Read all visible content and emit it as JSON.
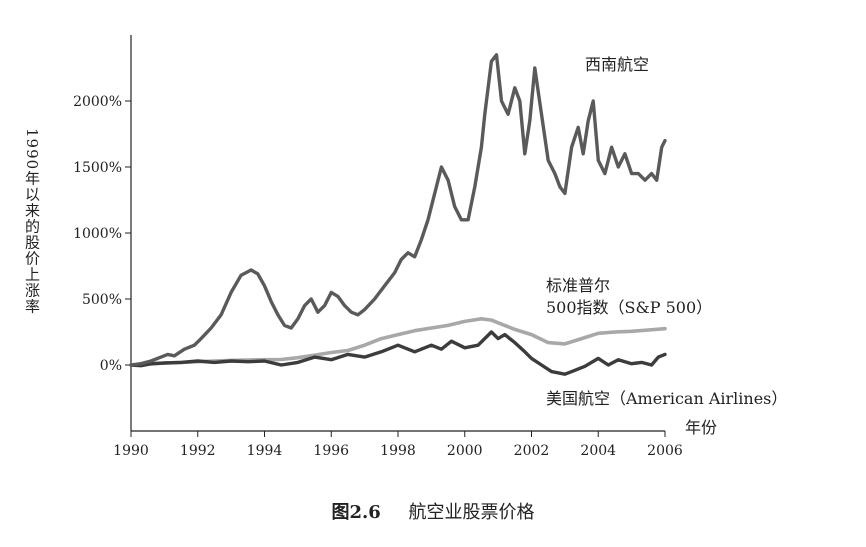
{
  "chart_data": {
    "type": "line",
    "title": "航空业股票价格",
    "figure_label": "图2.6",
    "xlabel": "年份",
    "ylabel": "1990年以来的股价上涨率",
    "xlim": [
      1990,
      2006
    ],
    "ylim": [
      -500,
      2500
    ],
    "x_ticks": [
      "1990",
      "1992",
      "1994",
      "1996",
      "1998",
      "2000",
      "2002",
      "2004",
      "2006"
    ],
    "y_ticks": [
      {
        "value": 0,
        "label": "0%"
      },
      {
        "value": 500,
        "label": "500%"
      },
      {
        "value": 1000,
        "label": "1000%"
      },
      {
        "value": 1500,
        "label": "1500%"
      },
      {
        "value": 2000,
        "label": "2000%"
      }
    ],
    "grid": false,
    "series": [
      {
        "name": "西南航空",
        "label_lines": [
          "西南航空"
        ],
        "color": "#5a5a5a",
        "x": [
          1990,
          1990.3,
          1990.6,
          1990.9,
          1991.1,
          1991.3,
          1991.6,
          1991.9,
          1992.1,
          1992.4,
          1992.7,
          1993.0,
          1993.3,
          1993.6,
          1993.8,
          1994.0,
          1994.2,
          1994.4,
          1994.6,
          1994.8,
          1995.0,
          1995.2,
          1995.4,
          1995.6,
          1995.8,
          1996.0,
          1996.2,
          1996.4,
          1996.6,
          1996.8,
          1997.0,
          1997.3,
          1997.6,
          1997.9,
          1998.1,
          1998.3,
          1998.5,
          1998.7,
          1998.9,
          1999.1,
          1999.3,
          1999.5,
          1999.7,
          1999.9,
          2000.1,
          2000.3,
          2000.5,
          2000.6,
          2000.8,
          2000.95,
          2001.1,
          2001.3,
          2001.5,
          2001.65,
          2001.8,
          2001.95,
          2002.1,
          2002.3,
          2002.5,
          2002.7,
          2002.85,
          2003.0,
          2003.2,
          2003.4,
          2003.55,
          2003.7,
          2003.85,
          2004.0,
          2004.2,
          2004.4,
          2004.6,
          2004.8,
          2005.0,
          2005.2,
          2005.4,
          2005.6,
          2005.75,
          2005.9,
          2006.0
        ],
        "values": [
          0,
          10,
          30,
          60,
          80,
          70,
          120,
          150,
          200,
          280,
          380,
          550,
          680,
          720,
          690,
          600,
          480,
          380,
          300,
          280,
          350,
          450,
          500,
          400,
          450,
          550,
          520,
          450,
          400,
          380,
          420,
          500,
          600,
          700,
          800,
          850,
          820,
          950,
          1100,
          1300,
          1500,
          1400,
          1200,
          1100,
          1100,
          1350,
          1650,
          1900,
          2300,
          2350,
          2000,
          1900,
          2100,
          2000,
          1600,
          1850,
          2250,
          1900,
          1550,
          1450,
          1350,
          1300,
          1650,
          1800,
          1600,
          1850,
          2000,
          1550,
          1450,
          1650,
          1500,
          1600,
          1450,
          1450,
          1400,
          1450,
          1400,
          1650,
          1700
        ]
      },
      {
        "name": "标准普尔500指数（S&P 500）",
        "label_lines": [
          "标准普尔",
          "500指数（S&P 500）"
        ],
        "color": "#a8a8a8",
        "x": [
          1990,
          1990.5,
          1991,
          1991.5,
          1992,
          1992.5,
          1993,
          1993.5,
          1994,
          1994.5,
          1995,
          1995.5,
          1996,
          1996.5,
          1997,
          1997.5,
          1998,
          1998.5,
          1999,
          1999.5,
          2000,
          2000.5,
          2000.8,
          2001,
          2001.5,
          2002,
          2002.5,
          2003,
          2003.5,
          2004,
          2004.5,
          2005,
          2005.5,
          2006
        ],
        "values": [
          0,
          5,
          15,
          20,
          25,
          30,
          35,
          38,
          40,
          42,
          55,
          75,
          95,
          110,
          150,
          200,
          230,
          260,
          280,
          300,
          330,
          350,
          340,
          320,
          270,
          230,
          170,
          160,
          200,
          240,
          250,
          255,
          265,
          275
        ]
      },
      {
        "name": "美国航空（American Airlines）",
        "label_lines": [
          "美国航空（American Airlines）"
        ],
        "color": "#3c3c3c",
        "x": [
          1990,
          1990.3,
          1990.6,
          1991,
          1991.5,
          1992,
          1992.5,
          1993,
          1993.5,
          1994,
          1994.5,
          1995,
          1995.5,
          1996,
          1996.5,
          1997,
          1997.5,
          1998,
          1998.5,
          1999,
          1999.3,
          1999.6,
          2000,
          2000.4,
          2000.8,
          2001.0,
          2001.2,
          2001.5,
          2001.8,
          2002,
          2002.3,
          2002.6,
          2003,
          2003.3,
          2003.6,
          2004,
          2004.3,
          2004.6,
          2005,
          2005.3,
          2005.6,
          2005.8,
          2006
        ],
        "values": [
          0,
          -5,
          10,
          15,
          20,
          30,
          20,
          30,
          25,
          30,
          0,
          20,
          60,
          40,
          80,
          60,
          100,
          150,
          100,
          150,
          120,
          180,
          130,
          150,
          250,
          200,
          230,
          170,
          100,
          50,
          0,
          -50,
          -70,
          -40,
          -10,
          50,
          0,
          40,
          10,
          20,
          0,
          60,
          80
        ]
      }
    ],
    "annotations": [
      {
        "text": "西南航空",
        "series": 0
      },
      {
        "text": "标准普尔 500指数（S&P 500）",
        "series": 1
      },
      {
        "text": "美国航空（American Airlines）",
        "series": 2
      }
    ]
  }
}
